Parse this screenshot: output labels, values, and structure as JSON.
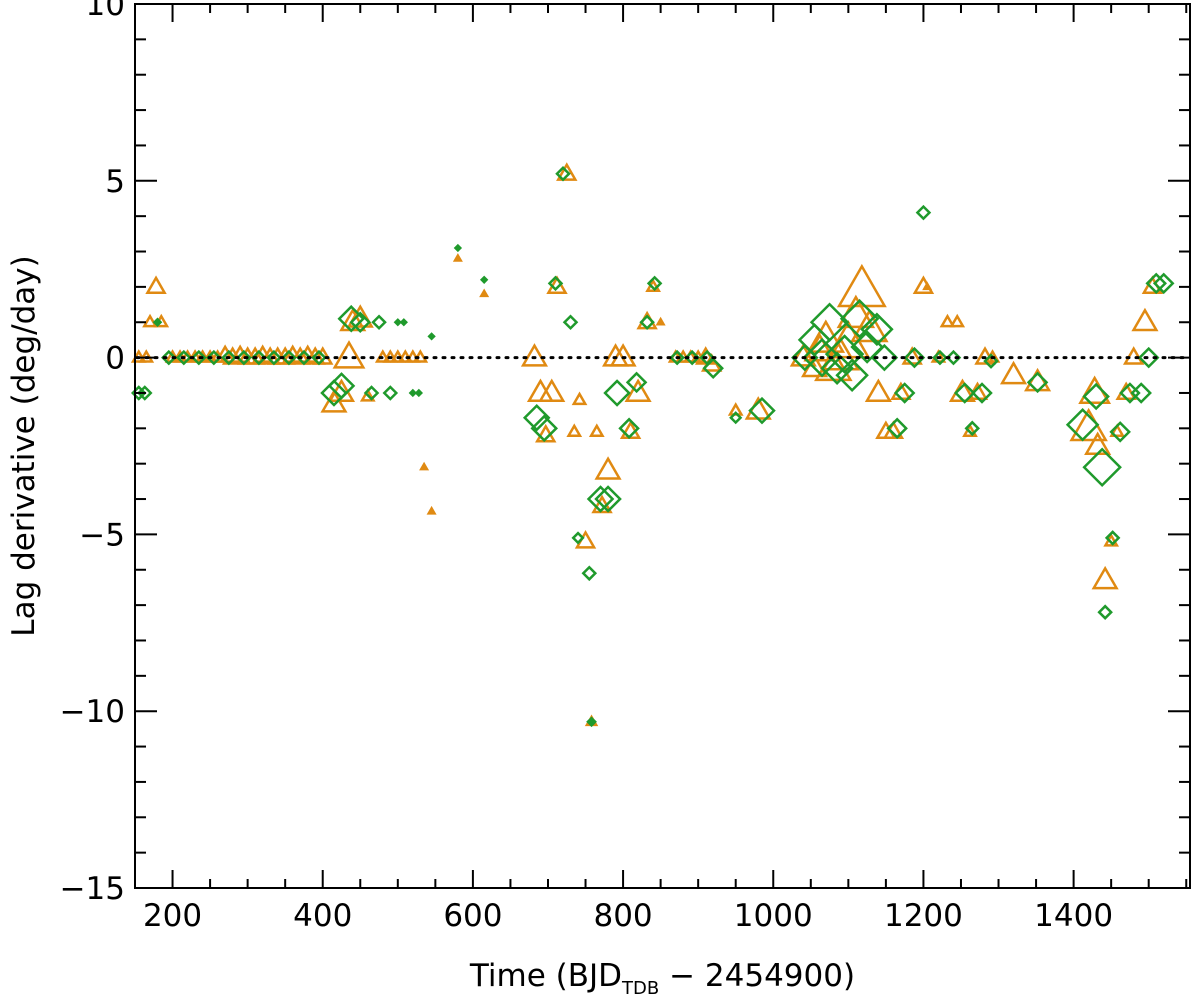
{
  "chart_data": {
    "type": "scatter",
    "title": "",
    "xlabel": "Time (BJD",
    "xlabel_sub": "TDB",
    "xlabel_tail": " − 2454900)",
    "ylabel": "Lag derivative (deg/day)",
    "xlim": [
      150,
      1555
    ],
    "ylim": [
      -15,
      10
    ],
    "xticks": [
      200,
      400,
      600,
      800,
      1000,
      1200,
      1400
    ],
    "xtick_labels": [
      "200",
      "400",
      "600",
      "800",
      "1000",
      "1200",
      "1400"
    ],
    "yticks": [
      -15,
      -10,
      -5,
      0,
      5,
      10
    ],
    "ytick_labels": [
      "−15",
      "−10",
      "−5",
      "0",
      "5",
      "10"
    ],
    "zero_line": 0,
    "colors": {
      "series_a": "#e08a12",
      "series_b": "#1f9a2c"
    },
    "series": [
      {
        "name": "triangles",
        "marker": "triangle",
        "color": "#e08a12",
        "points": [
          {
            "x": 155,
            "y": 0,
            "s": 1
          },
          {
            "x": 165,
            "y": 0,
            "s": 1
          },
          {
            "x": 170,
            "y": 1.0,
            "s": 1
          },
          {
            "x": 178,
            "y": 2.0,
            "s": 1.5
          },
          {
            "x": 185,
            "y": 1.0,
            "s": 1
          },
          {
            "x": 200,
            "y": 0,
            "s": 1
          },
          {
            "x": 210,
            "y": 0,
            "s": 1
          },
          {
            "x": 220,
            "y": 0,
            "s": 1
          },
          {
            "x": 230,
            "y": 0,
            "s": 1
          },
          {
            "x": 240,
            "y": 0,
            "s": 1
          },
          {
            "x": 250,
            "y": 0,
            "s": 1
          },
          {
            "x": 260,
            "y": 0,
            "s": 1
          },
          {
            "x": 270,
            "y": 0.05,
            "s": 1.5
          },
          {
            "x": 280,
            "y": 0,
            "s": 1.5
          },
          {
            "x": 290,
            "y": 0.05,
            "s": 1.5
          },
          {
            "x": 300,
            "y": 0,
            "s": 1.5
          },
          {
            "x": 310,
            "y": 0,
            "s": 1.5
          },
          {
            "x": 320,
            "y": 0.05,
            "s": 1.5
          },
          {
            "x": 330,
            "y": 0,
            "s": 1.5
          },
          {
            "x": 340,
            "y": 0,
            "s": 1.5
          },
          {
            "x": 350,
            "y": 0,
            "s": 1.5
          },
          {
            "x": 360,
            "y": 0.05,
            "s": 1.5
          },
          {
            "x": 370,
            "y": 0,
            "s": 1.5
          },
          {
            "x": 380,
            "y": 0.05,
            "s": 1.5
          },
          {
            "x": 390,
            "y": 0,
            "s": 1.5
          },
          {
            "x": 400,
            "y": 0,
            "s": 1.5
          },
          {
            "x": 415,
            "y": -1.3,
            "s": 2
          },
          {
            "x": 425,
            "y": -1.0,
            "s": 2
          },
          {
            "x": 435,
            "y": 0,
            "s": 2.5
          },
          {
            "x": 440,
            "y": 1.0,
            "s": 2
          },
          {
            "x": 450,
            "y": 1.1,
            "s": 2
          },
          {
            "x": 460,
            "y": -1.1,
            "s": 1
          },
          {
            "x": 480,
            "y": 0,
            "s": 1
          },
          {
            "x": 490,
            "y": 0,
            "s": 1
          },
          {
            "x": 500,
            "y": 0,
            "s": 1
          },
          {
            "x": 510,
            "y": 0,
            "s": 1
          },
          {
            "x": 520,
            "y": 0,
            "s": 1
          },
          {
            "x": 530,
            "y": 0,
            "s": 1
          },
          {
            "x": 535,
            "y": -3.1,
            "s": 0.5
          },
          {
            "x": 545,
            "y": -4.35,
            "s": 0.5
          },
          {
            "x": 580,
            "y": 2.8,
            "s": 0.5
          },
          {
            "x": 615,
            "y": 1.8,
            "s": 0.5
          },
          {
            "x": 682,
            "y": 0,
            "s": 2
          },
          {
            "x": 690,
            "y": -1.0,
            "s": 2
          },
          {
            "x": 697,
            "y": -2.2,
            "s": 1.5
          },
          {
            "x": 705,
            "y": -1.0,
            "s": 2
          },
          {
            "x": 712,
            "y": 2.0,
            "s": 1.5
          },
          {
            "x": 725,
            "y": 5.2,
            "s": 1.5
          },
          {
            "x": 735,
            "y": -2.1,
            "s": 1
          },
          {
            "x": 742,
            "y": -1.2,
            "s": 1
          },
          {
            "x": 750,
            "y": -5.2,
            "s": 1.5
          },
          {
            "x": 758,
            "y": -10.3,
            "s": 0.8
          },
          {
            "x": 765,
            "y": -2.1,
            "s": 1
          },
          {
            "x": 772,
            "y": -4.2,
            "s": 1.5
          },
          {
            "x": 780,
            "y": -3.2,
            "s": 2
          },
          {
            "x": 790,
            "y": 0,
            "s": 2
          },
          {
            "x": 800,
            "y": 0,
            "s": 2
          },
          {
            "x": 810,
            "y": -2.1,
            "s": 1.5
          },
          {
            "x": 820,
            "y": -1.0,
            "s": 2
          },
          {
            "x": 832,
            "y": 1.0,
            "s": 1.5
          },
          {
            "x": 840,
            "y": 2.0,
            "s": 1
          },
          {
            "x": 850,
            "y": 1.0,
            "s": 0.5
          },
          {
            "x": 870,
            "y": 0,
            "s": 1
          },
          {
            "x": 880,
            "y": 0,
            "s": 1
          },
          {
            "x": 890,
            "y": 0,
            "s": 1
          },
          {
            "x": 900,
            "y": 0,
            "s": 1
          },
          {
            "x": 910,
            "y": 0,
            "s": 1.5
          },
          {
            "x": 918,
            "y": -0.2,
            "s": 1.5
          },
          {
            "x": 950,
            "y": -1.5,
            "s": 1
          },
          {
            "x": 980,
            "y": -1.5,
            "s": 2
          },
          {
            "x": 1040,
            "y": 0,
            "s": 2
          },
          {
            "x": 1055,
            "y": -0.3,
            "s": 2
          },
          {
            "x": 1062,
            "y": 0.2,
            "s": 2.5
          },
          {
            "x": 1070,
            "y": 0.5,
            "s": 3
          },
          {
            "x": 1080,
            "y": -0.3,
            "s": 3
          },
          {
            "x": 1090,
            "y": 0,
            "s": 3
          },
          {
            "x": 1100,
            "y": 0.4,
            "s": 3.5
          },
          {
            "x": 1110,
            "y": 1.2,
            "s": 3
          },
          {
            "x": 1118,
            "y": 1.9,
            "s": 4
          },
          {
            "x": 1128,
            "y": 0.8,
            "s": 3
          },
          {
            "x": 1140,
            "y": -1.0,
            "s": 2
          },
          {
            "x": 1150,
            "y": -2.1,
            "s": 1.5
          },
          {
            "x": 1160,
            "y": -2.1,
            "s": 1.5
          },
          {
            "x": 1170,
            "y": -1.0,
            "s": 1.5
          },
          {
            "x": 1185,
            "y": 0,
            "s": 1.5
          },
          {
            "x": 1200,
            "y": 2.0,
            "s": 1.5
          },
          {
            "x": 1205,
            "y": 2.0,
            "s": 0.5
          },
          {
            "x": 1220,
            "y": 0,
            "s": 1
          },
          {
            "x": 1232,
            "y": 1.0,
            "s": 1
          },
          {
            "x": 1245,
            "y": 1.0,
            "s": 1
          },
          {
            "x": 1252,
            "y": -1.0,
            "s": 2
          },
          {
            "x": 1262,
            "y": -2.1,
            "s": 1
          },
          {
            "x": 1272,
            "y": -1.0,
            "s": 1.5
          },
          {
            "x": 1282,
            "y": 0,
            "s": 1.5
          },
          {
            "x": 1292,
            "y": 0,
            "s": 1
          },
          {
            "x": 1320,
            "y": -0.5,
            "s": 2
          },
          {
            "x": 1352,
            "y": -0.7,
            "s": 2
          },
          {
            "x": 1420,
            "y": -2.0,
            "s": 3
          },
          {
            "x": 1428,
            "y": -1.0,
            "s": 2.5
          },
          {
            "x": 1432,
            "y": -2.5,
            "s": 2
          },
          {
            "x": 1442,
            "y": -6.3,
            "s": 2
          },
          {
            "x": 1450,
            "y": -5.2,
            "s": 1
          },
          {
            "x": 1458,
            "y": -2.1,
            "s": 1
          },
          {
            "x": 1470,
            "y": -1.0,
            "s": 1.5
          },
          {
            "x": 1480,
            "y": 0,
            "s": 1.5
          },
          {
            "x": 1495,
            "y": 1.0,
            "s": 2
          },
          {
            "x": 1505,
            "y": 2.0,
            "s": 1.5
          }
        ]
      },
      {
        "name": "diamonds",
        "marker": "diamond",
        "color": "#1f9a2c",
        "points": [
          {
            "x": 155,
            "y": -1.0,
            "s": 1
          },
          {
            "x": 163,
            "y": -1.0,
            "s": 1
          },
          {
            "x": 180,
            "y": 1.0,
            "s": 0.5
          },
          {
            "x": 195,
            "y": 0,
            "s": 1
          },
          {
            "x": 215,
            "y": 0,
            "s": 1
          },
          {
            "x": 235,
            "y": 0,
            "s": 1
          },
          {
            "x": 255,
            "y": 0,
            "s": 1
          },
          {
            "x": 275,
            "y": 0,
            "s": 1
          },
          {
            "x": 295,
            "y": 0,
            "s": 1
          },
          {
            "x": 315,
            "y": 0,
            "s": 1
          },
          {
            "x": 335,
            "y": 0,
            "s": 1
          },
          {
            "x": 355,
            "y": 0,
            "s": 1
          },
          {
            "x": 375,
            "y": 0,
            "s": 1
          },
          {
            "x": 395,
            "y": 0,
            "s": 1
          },
          {
            "x": 415,
            "y": -1.0,
            "s": 2
          },
          {
            "x": 425,
            "y": -0.8,
            "s": 2
          },
          {
            "x": 438,
            "y": 1.1,
            "s": 2
          },
          {
            "x": 450,
            "y": 1.0,
            "s": 1.5
          },
          {
            "x": 465,
            "y": -1.0,
            "s": 1
          },
          {
            "x": 475,
            "y": 1.0,
            "s": 1
          },
          {
            "x": 490,
            "y": -1.0,
            "s": 1
          },
          {
            "x": 500,
            "y": 1.0,
            "s": 0.4
          },
          {
            "x": 508,
            "y": 1.0,
            "s": 0.4
          },
          {
            "x": 520,
            "y": -1.0,
            "s": 0.4
          },
          {
            "x": 528,
            "y": -1.0,
            "s": 0.4
          },
          {
            "x": 545,
            "y": 0.6,
            "s": 0.4
          },
          {
            "x": 580,
            "y": 3.1,
            "s": 0.4
          },
          {
            "x": 615,
            "y": 2.2,
            "s": 0.4
          },
          {
            "x": 685,
            "y": -1.7,
            "s": 2
          },
          {
            "x": 695,
            "y": -2.0,
            "s": 2
          },
          {
            "x": 710,
            "y": 2.1,
            "s": 1
          },
          {
            "x": 720,
            "y": 5.2,
            "s": 1
          },
          {
            "x": 730,
            "y": 1.0,
            "s": 1
          },
          {
            "x": 740,
            "y": -5.1,
            "s": 0.8
          },
          {
            "x": 758,
            "y": -10.3,
            "s": 0.6
          },
          {
            "x": 755,
            "y": -6.1,
            "s": 1
          },
          {
            "x": 770,
            "y": -4.0,
            "s": 2
          },
          {
            "x": 780,
            "y": -4.0,
            "s": 2
          },
          {
            "x": 792,
            "y": -1.0,
            "s": 2
          },
          {
            "x": 808,
            "y": -2.0,
            "s": 1.5
          },
          {
            "x": 818,
            "y": -0.7,
            "s": 1.5
          },
          {
            "x": 832,
            "y": 1.0,
            "s": 1
          },
          {
            "x": 842,
            "y": 2.1,
            "s": 1
          },
          {
            "x": 872,
            "y": 0,
            "s": 1
          },
          {
            "x": 892,
            "y": 0,
            "s": 1
          },
          {
            "x": 912,
            "y": 0,
            "s": 1
          },
          {
            "x": 920,
            "y": -0.3,
            "s": 1.5
          },
          {
            "x": 950,
            "y": -1.7,
            "s": 0.8
          },
          {
            "x": 985,
            "y": -1.5,
            "s": 2
          },
          {
            "x": 1042,
            "y": 0,
            "s": 2
          },
          {
            "x": 1055,
            "y": 0.5,
            "s": 2.5
          },
          {
            "x": 1065,
            "y": 0,
            "s": 3
          },
          {
            "x": 1075,
            "y": 1.0,
            "s": 3
          },
          {
            "x": 1085,
            "y": -0.3,
            "s": 2.5
          },
          {
            "x": 1095,
            "y": 0.1,
            "s": 3
          },
          {
            "x": 1105,
            "y": -0.5,
            "s": 2.5
          },
          {
            "x": 1115,
            "y": 1.1,
            "s": 3
          },
          {
            "x": 1125,
            "y": 0.3,
            "s": 2.5
          },
          {
            "x": 1138,
            "y": 0.8,
            "s": 2.5
          },
          {
            "x": 1148,
            "y": 0,
            "s": 2
          },
          {
            "x": 1165,
            "y": -2.0,
            "s": 1.5
          },
          {
            "x": 1175,
            "y": -1.0,
            "s": 1.5
          },
          {
            "x": 1188,
            "y": 0,
            "s": 1.5
          },
          {
            "x": 1200,
            "y": 4.1,
            "s": 1
          },
          {
            "x": 1222,
            "y": 0,
            "s": 1
          },
          {
            "x": 1240,
            "y": 0,
            "s": 1
          },
          {
            "x": 1255,
            "y": -1.0,
            "s": 1.5
          },
          {
            "x": 1265,
            "y": -2.0,
            "s": 1
          },
          {
            "x": 1278,
            "y": -1.0,
            "s": 1.5
          },
          {
            "x": 1290,
            "y": -0.1,
            "s": 1
          },
          {
            "x": 1352,
            "y": -0.7,
            "s": 1.5
          },
          {
            "x": 1412,
            "y": -1.9,
            "s": 2.5
          },
          {
            "x": 1430,
            "y": -1.1,
            "s": 2
          },
          {
            "x": 1438,
            "y": -3.1,
            "s": 3
          },
          {
            "x": 1442,
            "y": -7.2,
            "s": 1
          },
          {
            "x": 1452,
            "y": -5.1,
            "s": 1
          },
          {
            "x": 1462,
            "y": -2.1,
            "s": 1.5
          },
          {
            "x": 1475,
            "y": -1.0,
            "s": 1.5
          },
          {
            "x": 1490,
            "y": -1.0,
            "s": 1.5
          },
          {
            "x": 1500,
            "y": 0,
            "s": 1.5
          },
          {
            "x": 1510,
            "y": 2.1,
            "s": 1.5
          },
          {
            "x": 1520,
            "y": 2.1,
            "s": 1.5
          }
        ]
      }
    ]
  }
}
